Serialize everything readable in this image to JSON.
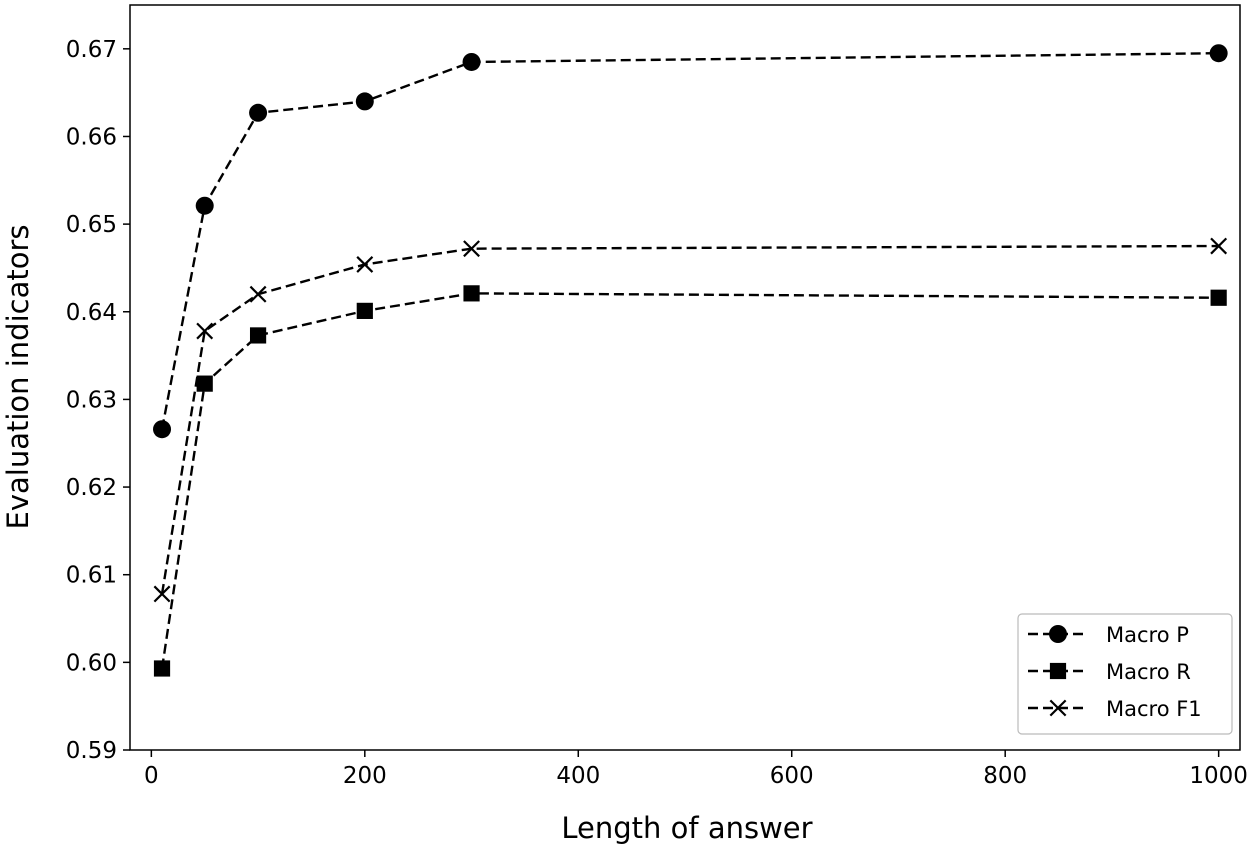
{
  "chart_data": {
    "type": "line",
    "title": "",
    "xlabel": "Length of answer",
    "ylabel": "Evaluation indicators",
    "xlim": [
      -20,
      1020
    ],
    "ylim": [
      0.59,
      0.675
    ],
    "x_ticks": [
      0,
      200,
      400,
      600,
      800,
      1000
    ],
    "y_ticks": [
      0.59,
      0.6,
      0.61,
      0.62,
      0.63,
      0.64,
      0.65,
      0.66,
      0.67
    ],
    "x_tick_labels": [
      "0",
      "200",
      "400",
      "600",
      "800",
      "1000"
    ],
    "y_tick_labels": [
      "0.59",
      "0.60",
      "0.61",
      "0.62",
      "0.63",
      "0.64",
      "0.65",
      "0.66",
      "0.67"
    ],
    "x_positions": [
      10,
      50,
      100,
      200,
      300,
      1000
    ],
    "grid": false,
    "legend_position": "bottom-right",
    "series": [
      {
        "name": "Macro P",
        "marker": "circle",
        "line_style": "dashed",
        "color": "#000000",
        "values": [
          0.6266,
          0.6521,
          0.6627,
          0.664,
          0.6685,
          0.6695
        ]
      },
      {
        "name": "Macro R",
        "marker": "square",
        "line_style": "dashed",
        "color": "#000000",
        "values": [
          0.5993,
          0.6318,
          0.6373,
          0.6401,
          0.6421,
          0.6416
        ]
      },
      {
        "name": "Macro F1",
        "marker": "x",
        "line_style": "dashed",
        "color": "#000000",
        "values": [
          0.6078,
          0.6378,
          0.642,
          0.6454,
          0.6472,
          0.6475
        ]
      }
    ]
  }
}
